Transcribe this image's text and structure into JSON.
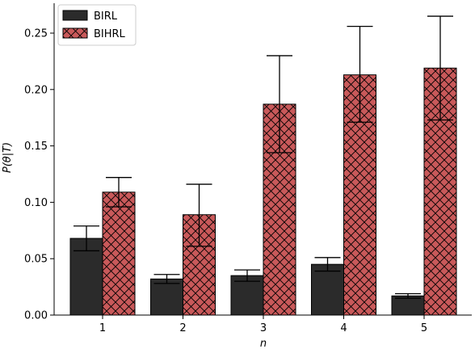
{
  "chart_data": {
    "type": "bar",
    "xlabel": "n",
    "ylabel": "P(θ|T)",
    "categories": [
      "1",
      "2",
      "3",
      "4",
      "5"
    ],
    "ylim": [
      0,
      0.275
    ],
    "yticks": [
      0.0,
      0.05,
      0.1,
      0.15,
      0.2,
      0.25
    ],
    "ytick_labels": [
      "0.00",
      "0.05",
      "0.10",
      "0.15",
      "0.20",
      "0.25"
    ],
    "series": [
      {
        "name": "BIRL",
        "color": "#2b2b2b",
        "hatch": "none",
        "values": [
          0.068,
          0.032,
          0.035,
          0.045,
          0.017
        ],
        "err_low": [
          0.057,
          0.028,
          0.03,
          0.039,
          0.015
        ],
        "err_high": [
          0.079,
          0.036,
          0.04,
          0.051,
          0.019
        ]
      },
      {
        "name": "BIHRL",
        "color": "#c9595a",
        "hatch": "cross",
        "values": [
          0.109,
          0.089,
          0.187,
          0.213,
          0.219
        ],
        "err_low": [
          0.096,
          0.061,
          0.144,
          0.171,
          0.173
        ],
        "err_high": [
          0.122,
          0.116,
          0.23,
          0.256,
          0.265
        ]
      }
    ],
    "legend": {
      "placement": "top-left"
    },
    "grid": false
  }
}
